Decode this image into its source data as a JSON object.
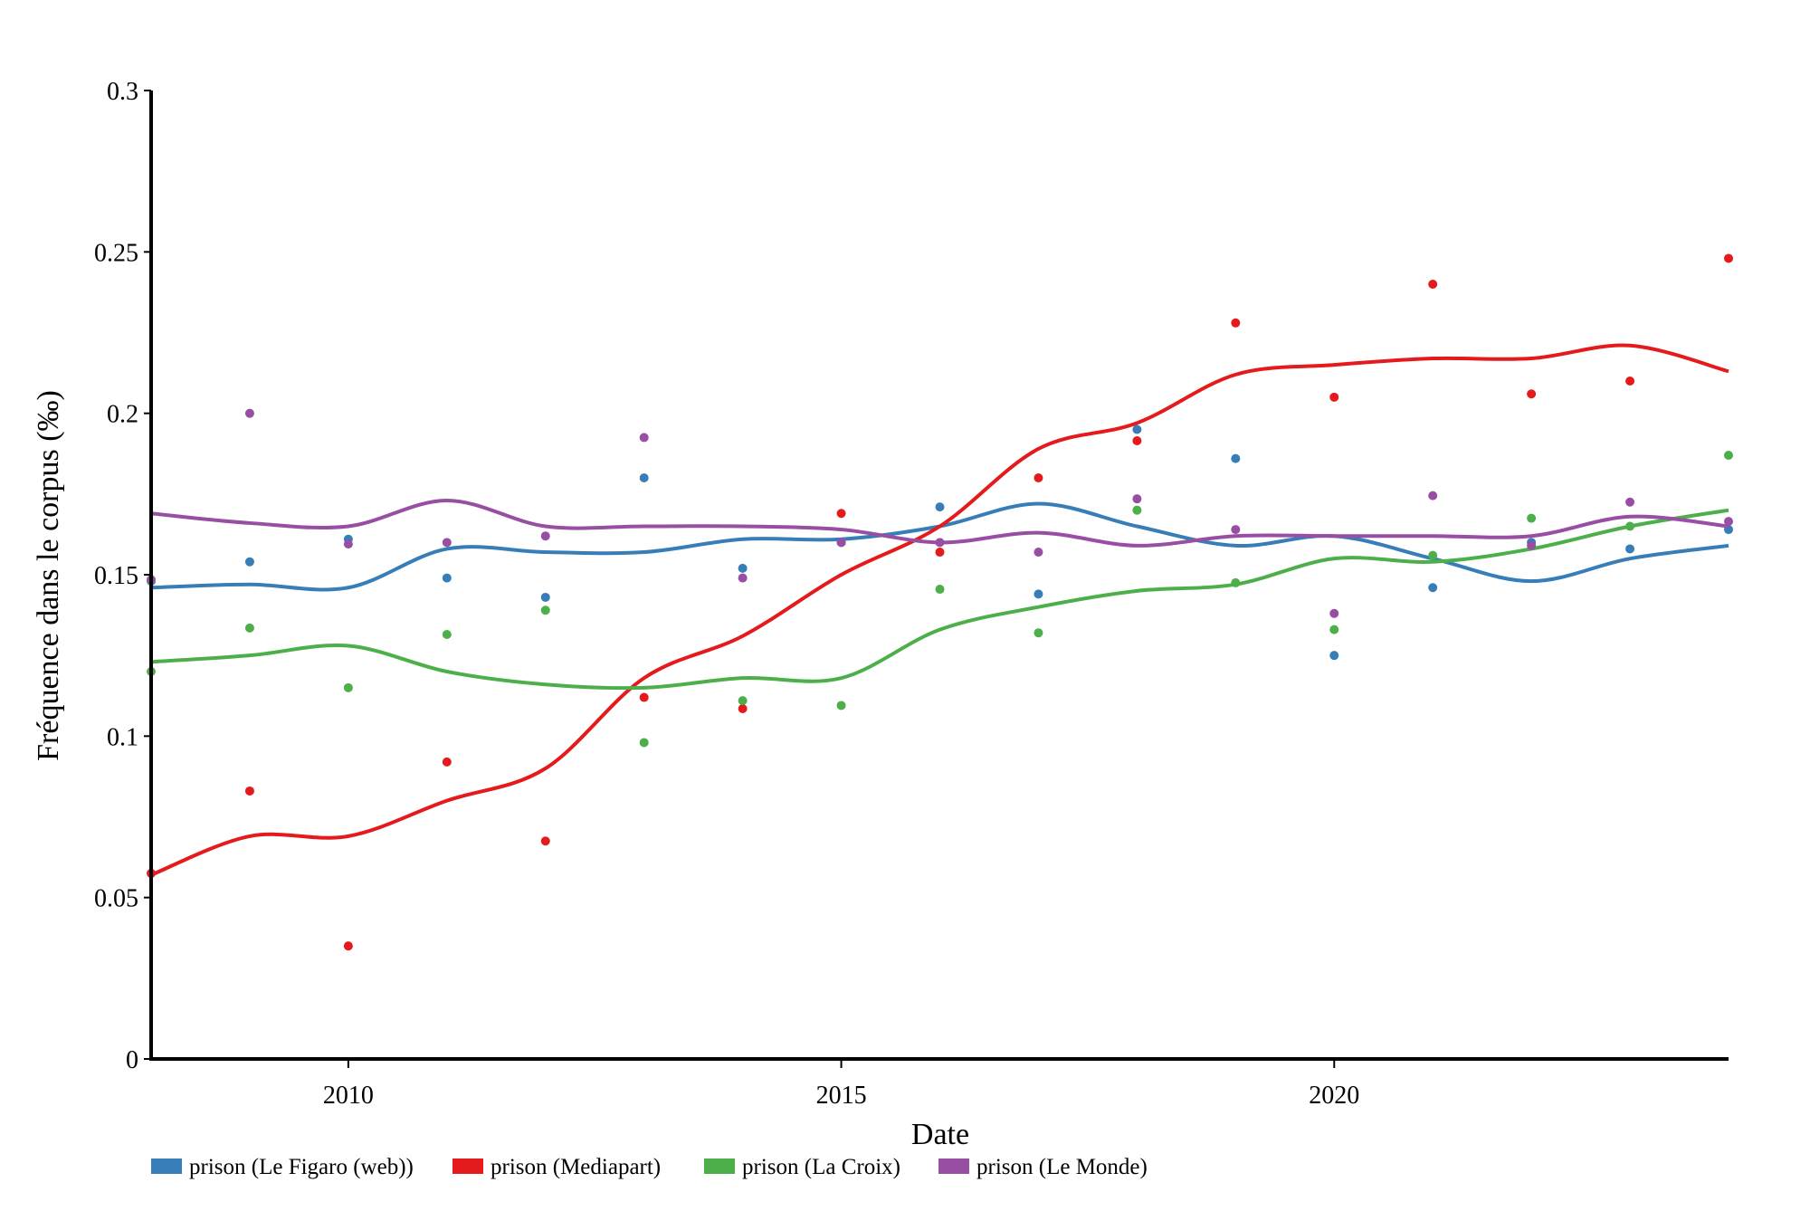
{
  "chart_data": {
    "type": "line",
    "title": "",
    "xlabel": "Date",
    "ylabel": "Fréquence dans le corpus (‰)",
    "xlim": [
      2008,
      2024
    ],
    "ylim": [
      0,
      0.3
    ],
    "xticks": [
      2010,
      2015,
      2020
    ],
    "yticks": [
      0,
      0.05,
      0.1,
      0.15,
      0.2,
      0.25,
      0.3
    ],
    "ytick_labels": [
      "0",
      "0.05",
      "0.1",
      "0.15",
      "0.2",
      "0.25",
      "0.3"
    ],
    "legend_position": "bottom-left",
    "x": [
      2008,
      2009,
      2010,
      2011,
      2012,
      2013,
      2014,
      2015,
      2016,
      2017,
      2018,
      2019,
      2020,
      2021,
      2022,
      2023,
      2024
    ],
    "series": [
      {
        "name": "prison (Le Figaro (web))",
        "color": "#377eb8",
        "values": [
          0.148,
          0.154,
          0.161,
          0.149,
          0.143,
          0.18,
          0.152,
          0.16,
          0.171,
          0.144,
          0.195,
          0.186,
          0.125,
          0.146,
          0.16,
          0.158,
          0.164
        ],
        "smoothed": [
          0.146,
          0.147,
          0.146,
          0.158,
          0.157,
          0.157,
          0.161,
          0.161,
          0.165,
          0.172,
          0.165,
          0.159,
          0.162,
          0.155,
          0.148,
          0.155,
          0.159
        ]
      },
      {
        "name": "prison (Mediapart)",
        "color": "#e41a1c",
        "values": [
          0.0575,
          0.083,
          0.035,
          0.092,
          0.0675,
          0.112,
          0.1085,
          0.169,
          0.157,
          0.18,
          0.1915,
          0.228,
          0.205,
          0.24,
          0.206,
          0.21,
          0.248
        ],
        "smoothed": [
          0.057,
          0.069,
          0.069,
          0.08,
          0.09,
          0.118,
          0.131,
          0.15,
          0.165,
          0.189,
          0.197,
          0.212,
          0.215,
          0.217,
          0.217,
          0.221,
          0.213
        ]
      },
      {
        "name": "prison (La Croix)",
        "color": "#4daf4a",
        "values": [
          0.12,
          0.1335,
          0.115,
          0.1315,
          0.139,
          0.098,
          0.111,
          0.1095,
          0.1455,
          0.132,
          0.17,
          0.1475,
          0.133,
          0.156,
          0.1675,
          0.165,
          0.187
        ],
        "smoothed": [
          0.123,
          0.125,
          0.128,
          0.12,
          0.116,
          0.115,
          0.118,
          0.118,
          0.133,
          0.14,
          0.145,
          0.147,
          0.155,
          0.154,
          0.158,
          0.165,
          0.17
        ]
      },
      {
        "name": "prison (Le Monde)",
        "color": "#984ea3",
        "values": [
          0.1485,
          0.2,
          0.1595,
          0.16,
          0.162,
          0.1925,
          0.149,
          0.16,
          0.16,
          0.157,
          0.1735,
          0.164,
          0.138,
          0.1745,
          0.159,
          0.1725,
          0.1665
        ],
        "smoothed": [
          0.169,
          0.166,
          0.165,
          0.173,
          0.165,
          0.165,
          0.165,
          0.164,
          0.16,
          0.163,
          0.159,
          0.162,
          0.162,
          0.162,
          0.162,
          0.168,
          0.165
        ]
      }
    ]
  }
}
